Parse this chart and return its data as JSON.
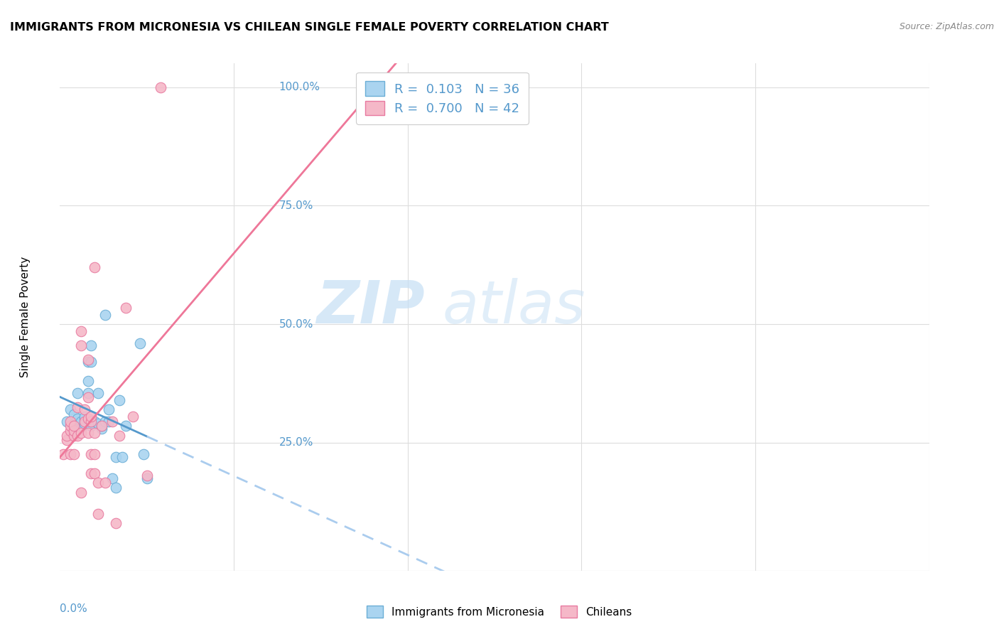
{
  "title": "IMMIGRANTS FROM MICRONESIA VS CHILEAN SINGLE FEMALE POVERTY CORRELATION CHART",
  "source": "Source: ZipAtlas.com",
  "ylabel": "Single Female Poverty",
  "y_ticks": [
    0.25,
    0.5,
    0.75,
    1.0
  ],
  "y_tick_labels": [
    "25.0%",
    "50.0%",
    "75.0%",
    "100.0%"
  ],
  "x_range": [
    0.0,
    0.25
  ],
  "y_range": [
    0.0,
    1.05
  ],
  "legend_blue_r": "0.103",
  "legend_blue_n": "36",
  "legend_pink_r": "0.700",
  "legend_pink_n": "42",
  "color_blue": "#aad4f0",
  "color_pink": "#f5b8c8",
  "color_blue_dark": "#6baed6",
  "color_pink_dark": "#e87aa0",
  "color_blue_line": "#5599cc",
  "color_pink_line": "#ee7799",
  "watermark_zip": "ZIP",
  "watermark_atlas": "atlas",
  "blue_points": [
    [
      0.002,
      0.295
    ],
    [
      0.003,
      0.32
    ],
    [
      0.004,
      0.31
    ],
    [
      0.004,
      0.29
    ],
    [
      0.005,
      0.3
    ],
    [
      0.005,
      0.355
    ],
    [
      0.006,
      0.295
    ],
    [
      0.006,
      0.28
    ],
    [
      0.007,
      0.3
    ],
    [
      0.007,
      0.305
    ],
    [
      0.007,
      0.29
    ],
    [
      0.008,
      0.38
    ],
    [
      0.008,
      0.355
    ],
    [
      0.008,
      0.42
    ],
    [
      0.009,
      0.455
    ],
    [
      0.009,
      0.285
    ],
    [
      0.009,
      0.295
    ],
    [
      0.009,
      0.42
    ],
    [
      0.01,
      0.295
    ],
    [
      0.011,
      0.29
    ],
    [
      0.011,
      0.355
    ],
    [
      0.012,
      0.28
    ],
    [
      0.012,
      0.285
    ],
    [
      0.013,
      0.52
    ],
    [
      0.013,
      0.295
    ],
    [
      0.014,
      0.295
    ],
    [
      0.014,
      0.32
    ],
    [
      0.015,
      0.175
    ],
    [
      0.016,
      0.155
    ],
    [
      0.016,
      0.22
    ],
    [
      0.017,
      0.34
    ],
    [
      0.018,
      0.22
    ],
    [
      0.019,
      0.285
    ],
    [
      0.023,
      0.46
    ],
    [
      0.024,
      0.225
    ],
    [
      0.025,
      0.175
    ]
  ],
  "pink_points": [
    [
      0.001,
      0.225
    ],
    [
      0.002,
      0.255
    ],
    [
      0.002,
      0.265
    ],
    [
      0.003,
      0.225
    ],
    [
      0.003,
      0.275
    ],
    [
      0.003,
      0.285
    ],
    [
      0.003,
      0.295
    ],
    [
      0.004,
      0.265
    ],
    [
      0.004,
      0.275
    ],
    [
      0.004,
      0.225
    ],
    [
      0.004,
      0.285
    ],
    [
      0.005,
      0.265
    ],
    [
      0.005,
      0.325
    ],
    [
      0.006,
      0.455
    ],
    [
      0.006,
      0.485
    ],
    [
      0.006,
      0.145
    ],
    [
      0.006,
      0.27
    ],
    [
      0.007,
      0.295
    ],
    [
      0.007,
      0.32
    ],
    [
      0.008,
      0.27
    ],
    [
      0.008,
      0.3
    ],
    [
      0.008,
      0.345
    ],
    [
      0.008,
      0.425
    ],
    [
      0.009,
      0.185
    ],
    [
      0.009,
      0.225
    ],
    [
      0.009,
      0.295
    ],
    [
      0.009,
      0.305
    ],
    [
      0.01,
      0.185
    ],
    [
      0.01,
      0.225
    ],
    [
      0.01,
      0.62
    ],
    [
      0.01,
      0.27
    ],
    [
      0.011,
      0.1
    ],
    [
      0.011,
      0.165
    ],
    [
      0.012,
      0.285
    ],
    [
      0.013,
      0.165
    ],
    [
      0.015,
      0.295
    ],
    [
      0.016,
      0.08
    ],
    [
      0.017,
      0.265
    ],
    [
      0.019,
      0.535
    ],
    [
      0.021,
      0.305
    ],
    [
      0.025,
      0.18
    ],
    [
      0.029,
      1.0
    ]
  ],
  "blue_line_x0": 0.0,
  "blue_line_x1": 0.025,
  "blue_line_x2": 0.25,
  "blue_intercept": 0.305,
  "blue_slope": 2.5,
  "pink_intercept": 0.1,
  "pink_slope": 32.0
}
